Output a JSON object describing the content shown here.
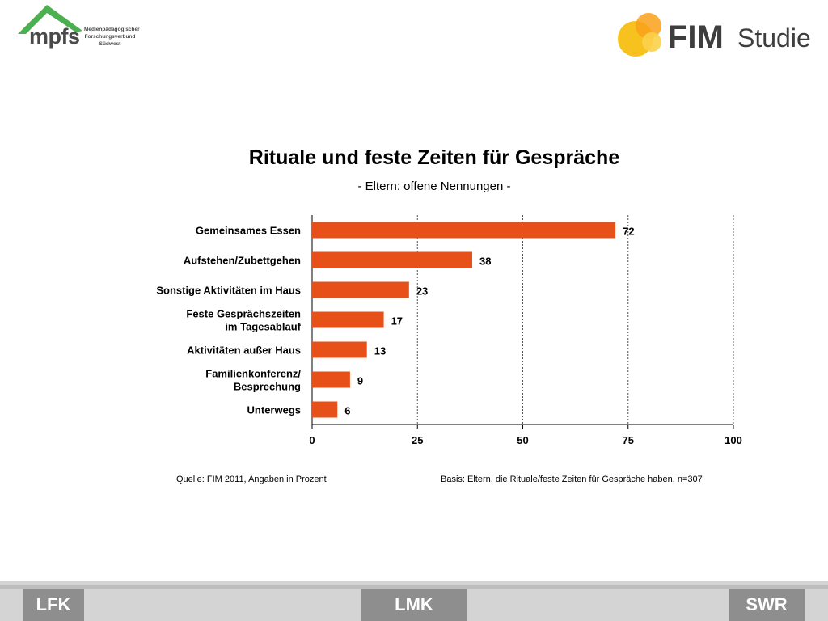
{
  "logos": {
    "mpfs": {
      "word": "mpfs",
      "subtitle_lines": [
        "Medienpädagogischer",
        "Forschungsverbund",
        "Südwest"
      ],
      "color": "#4caf50"
    },
    "fim": {
      "word": "FIM",
      "studie": "Studie",
      "circle_color": "#f7c11e"
    }
  },
  "chart_data": {
    "type": "bar",
    "orientation": "horizontal",
    "title": "Rituale und feste Zeiten für Gespräche",
    "subtitle": "- Eltern: offene Nennungen -",
    "categories": [
      "Gemeinsames Essen",
      "Aufstehen/Zubettgehen",
      "Sonstige Aktivitäten  im Haus",
      "Feste Gesprächszeiten\nim Tagesablauf",
      "Aktivitäten  außer Haus",
      "Familienkonferenz/\nBesprechung",
      "Unterwegs"
    ],
    "values": [
      72,
      38,
      23,
      17,
      13,
      9,
      6
    ],
    "xlim": [
      0,
      100
    ],
    "xticks": [
      0,
      25,
      50,
      75,
      100
    ],
    "grid": "vertical dashed",
    "bar_color": "#e8501a"
  },
  "footnotes": {
    "source": "Quelle: FIM 2011,  Angaben in Prozent",
    "basis": "Basis: Eltern, die Rituale/feste Zeiten für Gespräche haben, n=307"
  },
  "partners": [
    "LFK",
    "LMK",
    "SWR"
  ]
}
